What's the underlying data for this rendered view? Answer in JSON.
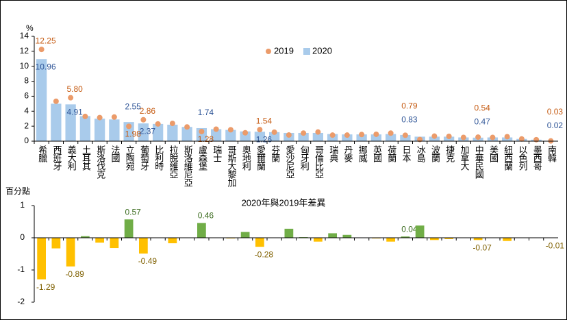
{
  "chart_data": [
    {
      "type": "bar_dot",
      "y_label": "%",
      "categories": [
        "希臘",
        "西班牙",
        "義大利",
        "土耳其",
        "斯洛伐克",
        "法國",
        "立陶宛",
        "葡萄牙",
        "比利時",
        "拉脫維亞",
        "斯洛維尼亞",
        "盧森堡",
        "瑞士",
        "哥斯大黎加",
        "奧地利",
        "愛爾蘭",
        "芬蘭",
        "愛沙尼亞",
        "匈牙利",
        "哥倫比亞",
        "瑞典",
        "丹麥",
        "挪威",
        "英國",
        "荷蘭",
        "日本",
        "冰島",
        "波蘭",
        "捷克",
        "加拿大",
        "中華民國",
        "美國",
        "紐西蘭",
        "以色列",
        "墨西哥",
        "南韓"
      ],
      "series": [
        {
          "name": "2019",
          "color": "#eb9b6a",
          "label_color": "#c55a11",
          "mark": "dot",
          "values": [
            12.25,
            5.33,
            5.8,
            3.3,
            3.15,
            3.22,
            1.98,
            2.86,
            2.3,
            2.37,
            1.9,
            1.28,
            1.6,
            1.52,
            1.12,
            1.54,
            1.2,
            0.82,
            1.08,
            1.22,
            0.81,
            0.81,
            0.89,
            0.92,
            1.07,
            0.79,
            0.22,
            0.67,
            0.64,
            0.5,
            0.54,
            0.5,
            0.6,
            0.3,
            0.2,
            0.03
          ],
          "value_labels": [
            "12.25",
            null,
            "5.80",
            null,
            null,
            null,
            "1.98",
            "2.86",
            null,
            null,
            null,
            "1.28",
            null,
            null,
            null,
            "1.54",
            null,
            null,
            null,
            null,
            null,
            null,
            null,
            null,
            null,
            "0.79",
            null,
            null,
            null,
            null,
            "0.54",
            null,
            null,
            null,
            null,
            "0.03"
          ]
        },
        {
          "name": "2020",
          "color": "#a9cbeb",
          "label_color": "#2f5597",
          "mark": "bar",
          "values": [
            10.96,
            5.0,
            4.91,
            3.35,
            3.0,
            2.9,
            2.55,
            2.37,
            2.3,
            2.2,
            1.9,
            1.74,
            1.6,
            1.5,
            1.3,
            1.26,
            1.2,
            1.1,
            1.1,
            1.1,
            0.95,
            0.9,
            0.9,
            0.9,
            0.95,
            0.83,
            0.6,
            0.6,
            0.6,
            0.5,
            0.47,
            0.5,
            0.5,
            0.3,
            0.2,
            0.02
          ],
          "value_labels": [
            "10.96",
            null,
            "4.91",
            null,
            null,
            null,
            "2.55",
            "2.37",
            null,
            null,
            null,
            "1.74",
            null,
            null,
            null,
            "1.26",
            null,
            null,
            null,
            null,
            null,
            null,
            null,
            null,
            null,
            "0.83",
            null,
            null,
            null,
            null,
            "0.47",
            null,
            null,
            null,
            null,
            "0.02"
          ]
        }
      ],
      "ylim": [
        0,
        14
      ],
      "yticks": [
        0,
        2,
        4,
        6,
        8,
        10,
        12,
        14
      ]
    },
    {
      "type": "diverging_bar",
      "title": "2020年與2019年差異",
      "y_label": "百分點",
      "positive_color": "#70ad47",
      "negative_color": "#ffc000",
      "values": [
        -1.29,
        -0.33,
        -0.89,
        0.05,
        -0.15,
        -0.32,
        0.57,
        -0.49,
        0,
        -0.17,
        0,
        0.46,
        0,
        -0.02,
        0.18,
        -0.28,
        0,
        0.28,
        0.02,
        -0.12,
        0.14,
        0.09,
        0.01,
        -0.02,
        -0.12,
        0.04,
        0.38,
        -0.07,
        -0.04,
        0,
        -0.07,
        0,
        -0.1,
        0,
        0,
        -0.01
      ],
      "value_labels": [
        "-1.29",
        null,
        "-0.89",
        null,
        null,
        null,
        "0.57",
        "-0.49",
        null,
        null,
        null,
        "0.46",
        null,
        null,
        null,
        "-0.28",
        null,
        null,
        null,
        null,
        null,
        null,
        null,
        null,
        null,
        "0.04",
        null,
        null,
        null,
        null,
        "-0.07",
        null,
        null,
        null,
        null,
        "-0.01"
      ],
      "ylim": [
        -2,
        1
      ],
      "yticks": [
        -2,
        -1,
        0,
        1
      ]
    }
  ]
}
